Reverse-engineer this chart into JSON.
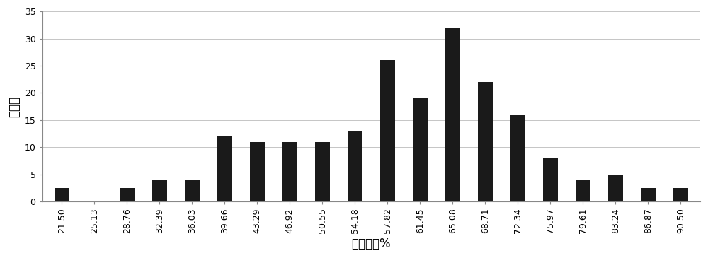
{
  "categories": [
    "21.50",
    "25.13",
    "28.76",
    "32.39",
    "36.03",
    "39.66",
    "43.29",
    "46.92",
    "50.55",
    "54.18",
    "57.82",
    "61.45",
    "65.08",
    "68.71",
    "72.34",
    "75.97",
    "79.61",
    "83.24",
    "86.87",
    "90.50"
  ],
  "values": [
    2.5,
    0,
    2.5,
    4,
    4,
    12,
    11,
    11,
    11,
    13,
    26,
    19,
    32,
    22,
    16,
    8,
    4,
    5,
    2.5,
    2.5
  ],
  "bar_color": "#1a1a1a",
  "xlabel": "存活株率%",
  "ylabel": "株系数",
  "ylim": [
    0,
    35
  ],
  "yticks": [
    0,
    5,
    10,
    15,
    20,
    25,
    30,
    35
  ],
  "background_color": "#ffffff",
  "grid_color": "#bbbbbb",
  "xlabel_fontsize": 12,
  "ylabel_fontsize": 12,
  "tick_fontsize": 9,
  "bar_width": 0.45,
  "figwidth": 10.0,
  "figheight": 3.65,
  "dpi": 100
}
